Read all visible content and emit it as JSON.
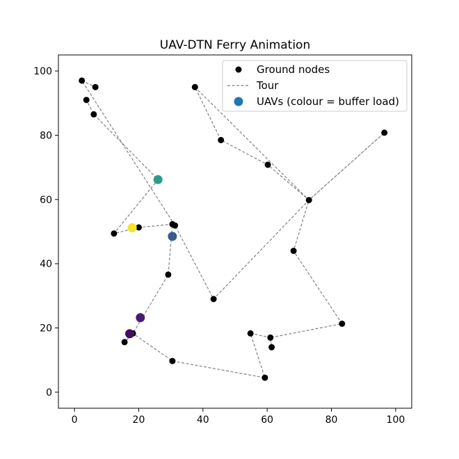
{
  "chart_data": {
    "type": "scatter",
    "title": "UAV-DTN Ferry Animation",
    "xlabel": "",
    "ylabel": "",
    "xlim": [
      -5,
      105
    ],
    "ylim": [
      -5,
      105
    ],
    "xticks": [
      0,
      20,
      40,
      60,
      80,
      100
    ],
    "yticks": [
      0,
      20,
      40,
      60,
      80,
      100
    ],
    "grid": false,
    "legend_position": "upper-right",
    "legend": [
      "Ground nodes",
      "Tour",
      "UAVs (colour = buffer load)"
    ],
    "colors": {
      "nodes": "#000000",
      "tour": "#808080",
      "uav_legend": "#1f77b4"
    },
    "series": [
      {
        "name": "Ground nodes",
        "type": "scatter",
        "points": [
          [
            2.3,
            97
          ],
          [
            6.5,
            95
          ],
          [
            3.7,
            91
          ],
          [
            6,
            86.5
          ],
          [
            37.5,
            95
          ],
          [
            45.6,
            78.5
          ],
          [
            60.2,
            70.8
          ],
          [
            73,
            59.8
          ],
          [
            96.5,
            80.8
          ],
          [
            68.2,
            44
          ],
          [
            83.3,
            21.3
          ],
          [
            61,
            17
          ],
          [
            61.4,
            14
          ],
          [
            54.8,
            18.3
          ],
          [
            59.3,
            4.5
          ],
          [
            30.5,
            9.7
          ],
          [
            18.2,
            18.3
          ],
          [
            15.6,
            15.6
          ],
          [
            29.2,
            36.6
          ],
          [
            30.5,
            52.3
          ],
          [
            31.3,
            51.9
          ],
          [
            20,
            51.3
          ],
          [
            12.3,
            49.4
          ],
          [
            43.3,
            29
          ]
        ]
      },
      {
        "name": "Tour",
        "type": "line",
        "points": [
          [
            2.3,
            97
          ],
          [
            6.5,
            95
          ],
          [
            2.3,
            97
          ],
          [
            31.3,
            51.9
          ],
          [
            43.3,
            29
          ],
          [
            73,
            59.8
          ],
          [
            96.5,
            80.8
          ],
          [
            73,
            59.8
          ],
          [
            60.2,
            70.8
          ],
          [
            45.6,
            78.5
          ],
          [
            37.5,
            95
          ],
          [
            73,
            59.8
          ],
          [
            68.2,
            44
          ],
          [
            83.3,
            21.3
          ],
          [
            61,
            17
          ],
          [
            61.4,
            14
          ],
          [
            61,
            17
          ],
          [
            54.8,
            18.3
          ],
          [
            59.3,
            4.5
          ],
          [
            30.5,
            9.7
          ],
          [
            18.2,
            18.3
          ],
          [
            15.6,
            15.6
          ],
          [
            18.2,
            18.3
          ],
          [
            29.2,
            36.6
          ],
          [
            30.5,
            52.3
          ],
          [
            20,
            51.3
          ],
          [
            12.3,
            49.4
          ],
          [
            26,
            66.2
          ],
          [
            6,
            86.5
          ],
          [
            3.7,
            91
          ]
        ]
      },
      {
        "name": "UAVs (colour = buffer load)",
        "type": "scatter",
        "points": [
          {
            "x": 26,
            "y": 66.2,
            "color": "#2a9d8a"
          },
          {
            "x": 18,
            "y": 51.2,
            "color": "#f2e426"
          },
          {
            "x": 30.5,
            "y": 48.5,
            "color": "#3b5b8c"
          },
          {
            "x": 20.5,
            "y": 23.2,
            "color": "#4b1a70"
          },
          {
            "x": 17.2,
            "y": 18.2,
            "color": "#440c5c"
          }
        ]
      }
    ]
  }
}
